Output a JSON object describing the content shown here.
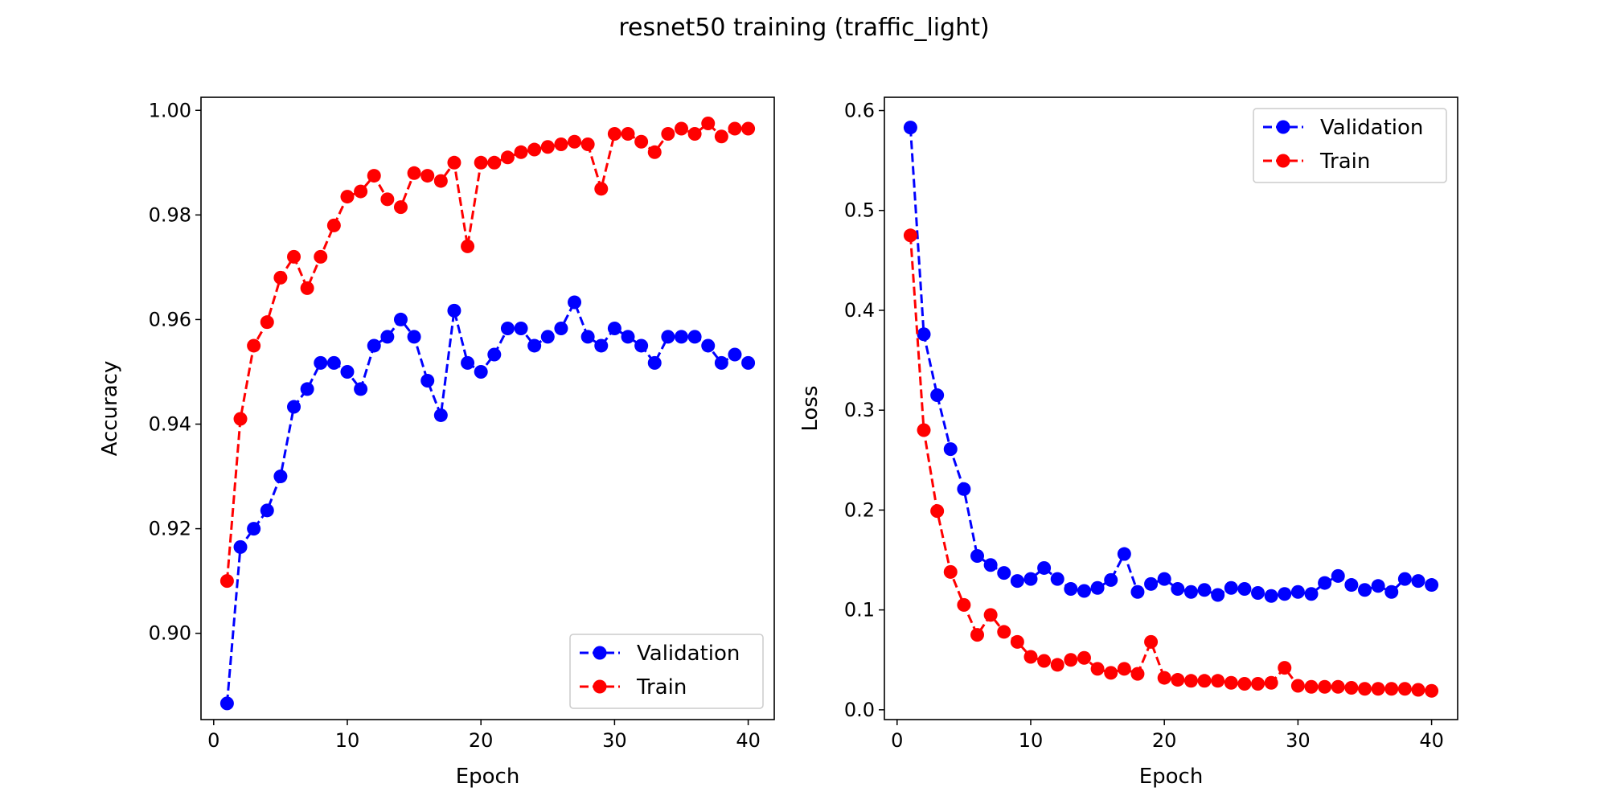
{
  "figure": {
    "title": "resnet50 training (traffic_light)"
  },
  "chart_data": [
    {
      "type": "line",
      "id": "accuracy",
      "xlabel": "Epoch",
      "ylabel": "Accuracy",
      "xlim": [
        -0.95,
        41.95
      ],
      "ylim": [
        0.8835,
        1.0025
      ],
      "xticks": [
        0,
        10,
        20,
        30,
        40
      ],
      "xtick_labels": [
        "0",
        "10",
        "20",
        "30",
        "40"
      ],
      "yticks": [
        0.9,
        0.92,
        0.94,
        0.96,
        0.98,
        1.0
      ],
      "ytick_labels": [
        "0.90",
        "0.92",
        "0.94",
        "0.96",
        "0.98",
        "1.00"
      ],
      "legend_position": "lower-right",
      "x": [
        1,
        2,
        3,
        4,
        5,
        6,
        7,
        8,
        9,
        10,
        11,
        12,
        13,
        14,
        15,
        16,
        17,
        18,
        19,
        20,
        21,
        22,
        23,
        24,
        25,
        26,
        27,
        28,
        29,
        30,
        31,
        32,
        33,
        34,
        35,
        36,
        37,
        38,
        39,
        40
      ],
      "series": [
        {
          "name": "Validation",
          "color": "#0000ff",
          "style": "dashed-circle",
          "values": [
            0.8866,
            0.9165,
            0.92,
            0.9235,
            0.93,
            0.9433,
            0.9467,
            0.9517,
            0.9517,
            0.95,
            0.9467,
            0.955,
            0.9567,
            0.96,
            0.9567,
            0.9483,
            0.9417,
            0.9617,
            0.9517,
            0.95,
            0.9533,
            0.9583,
            0.9583,
            0.955,
            0.9567,
            0.9583,
            0.9633,
            0.9567,
            0.955,
            0.9583,
            0.9567,
            0.955,
            0.9517,
            0.9567,
            0.9567,
            0.9567,
            0.955,
            0.9517,
            0.9533,
            0.9517
          ]
        },
        {
          "name": "Train",
          "color": "#ff0000",
          "style": "dashed-circle",
          "values": [
            0.91,
            0.941,
            0.955,
            0.9595,
            0.968,
            0.972,
            0.966,
            0.972,
            0.978,
            0.9835,
            0.9845,
            0.9875,
            0.983,
            0.9815,
            0.988,
            0.9875,
            0.9865,
            0.99,
            0.974,
            0.99,
            0.99,
            0.991,
            0.992,
            0.9925,
            0.993,
            0.9935,
            0.994,
            0.9935,
            0.985,
            0.9955,
            0.9955,
            0.994,
            0.992,
            0.9955,
            0.9965,
            0.9955,
            0.9975,
            0.995,
            0.9965,
            0.9965
          ]
        }
      ]
    },
    {
      "type": "line",
      "id": "loss",
      "xlabel": "Epoch",
      "ylabel": "Loss",
      "xlim": [
        -0.95,
        41.95
      ],
      "ylim": [
        -0.0098,
        0.6133
      ],
      "xticks": [
        0,
        10,
        20,
        30,
        40
      ],
      "xtick_labels": [
        "0",
        "10",
        "20",
        "30",
        "40"
      ],
      "yticks": [
        0.0,
        0.1,
        0.2,
        0.3,
        0.4,
        0.5,
        0.6
      ],
      "ytick_labels": [
        "0.0",
        "0.1",
        "0.2",
        "0.3",
        "0.4",
        "0.5",
        "0.6"
      ],
      "legend_position": "upper-right",
      "x": [
        1,
        2,
        3,
        4,
        5,
        6,
        7,
        8,
        9,
        10,
        11,
        12,
        13,
        14,
        15,
        16,
        17,
        18,
        19,
        20,
        21,
        22,
        23,
        24,
        25,
        26,
        27,
        28,
        29,
        30,
        31,
        32,
        33,
        34,
        35,
        36,
        37,
        38,
        39,
        40
      ],
      "series": [
        {
          "name": "Validation",
          "color": "#0000ff",
          "style": "dashed-circle",
          "values": [
            0.583,
            0.376,
            0.315,
            0.261,
            0.221,
            0.154,
            0.145,
            0.137,
            0.129,
            0.131,
            0.142,
            0.131,
            0.121,
            0.119,
            0.122,
            0.13,
            0.156,
            0.118,
            0.126,
            0.131,
            0.121,
            0.118,
            0.12,
            0.115,
            0.122,
            0.121,
            0.117,
            0.114,
            0.116,
            0.118,
            0.116,
            0.127,
            0.134,
            0.125,
            0.12,
            0.124,
            0.118,
            0.131,
            0.129,
            0.125
          ]
        },
        {
          "name": "Train",
          "color": "#ff0000",
          "style": "dashed-circle",
          "values": [
            0.475,
            0.28,
            0.199,
            0.138,
            0.105,
            0.075,
            0.095,
            0.078,
            0.068,
            0.053,
            0.049,
            0.045,
            0.05,
            0.052,
            0.041,
            0.037,
            0.041,
            0.036,
            0.068,
            0.032,
            0.03,
            0.029,
            0.029,
            0.029,
            0.027,
            0.026,
            0.026,
            0.027,
            0.042,
            0.024,
            0.023,
            0.023,
            0.023,
            0.022,
            0.021,
            0.021,
            0.021,
            0.021,
            0.02,
            0.019
          ]
        }
      ]
    }
  ]
}
